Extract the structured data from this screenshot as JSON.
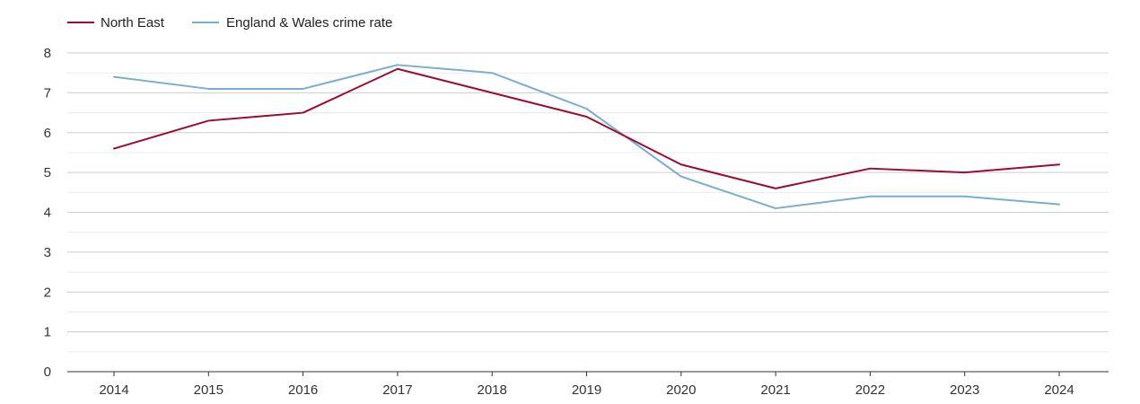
{
  "chart_data": {
    "type": "line",
    "title": "",
    "xlabel": "",
    "ylabel": "",
    "categories": [
      "2014",
      "2015",
      "2016",
      "2017",
      "2018",
      "2019",
      "2020",
      "2021",
      "2022",
      "2023",
      "2024"
    ],
    "ylim": [
      0,
      8
    ],
    "yticks": [
      0,
      1,
      2,
      3,
      4,
      5,
      6,
      7,
      8
    ],
    "grid": true,
    "legend_position": "top-left",
    "series": [
      {
        "name": "North East",
        "color": "#9b0d32",
        "values": [
          5.6,
          6.3,
          6.5,
          7.6,
          7.0,
          6.4,
          5.2,
          4.6,
          5.1,
          5.0,
          5.2
        ]
      },
      {
        "name": "England & Wales crime rate",
        "color": "#7aaed0",
        "values": [
          7.4,
          7.1,
          7.1,
          7.7,
          7.5,
          6.6,
          4.9,
          4.1,
          4.4,
          4.4,
          4.2
        ]
      }
    ]
  }
}
